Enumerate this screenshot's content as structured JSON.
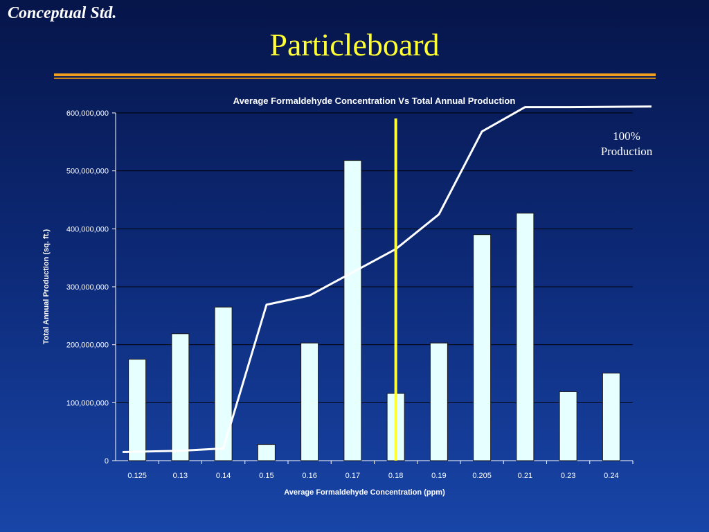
{
  "header": {
    "brand": "Conceptual Std.",
    "title": "Particleboard"
  },
  "annotation": {
    "line1": "100%",
    "line2": "Production"
  },
  "chart_data": {
    "type": "bar",
    "title": "Average Formaldehyde Concentration Vs Total Annual Production",
    "xlabel": "Average Formaldehyde Concentration (ppm)",
    "ylabel": "Total Annual Production (sq. ft.)",
    "categories": [
      "0.125",
      "0.13",
      "0.14",
      "0.15",
      "0.16",
      "0.17",
      "0.18",
      "0.19",
      "0.205",
      "0.21",
      "0.23",
      "0.24"
    ],
    "values": [
      175000000,
      219000000,
      265000000,
      28000000,
      203000000,
      518000000,
      116000000,
      203000000,
      390000000,
      427000000,
      119000000,
      151000000
    ],
    "cumulative_line": {
      "values": [
        15000000,
        17000000,
        21000000,
        269000000,
        285000000,
        325000000,
        365000000,
        425000000,
        568000000,
        610000000,
        610000000,
        611000000
      ]
    },
    "reference_line": {
      "x": "0.18",
      "color": "#ffff33"
    },
    "ylim": [
      0,
      600000000
    ],
    "yticks": [
      "0",
      "100,000,000",
      "200,000,000",
      "300,000,000",
      "400,000,000",
      "500,000,000",
      "600,000,000"
    ],
    "grid": true,
    "colors": {
      "bar": "#e6ffff",
      "bar_outline": "#1a1a1a",
      "line": "#ffffff",
      "grid": "#000000",
      "text": "#ffffff"
    }
  }
}
